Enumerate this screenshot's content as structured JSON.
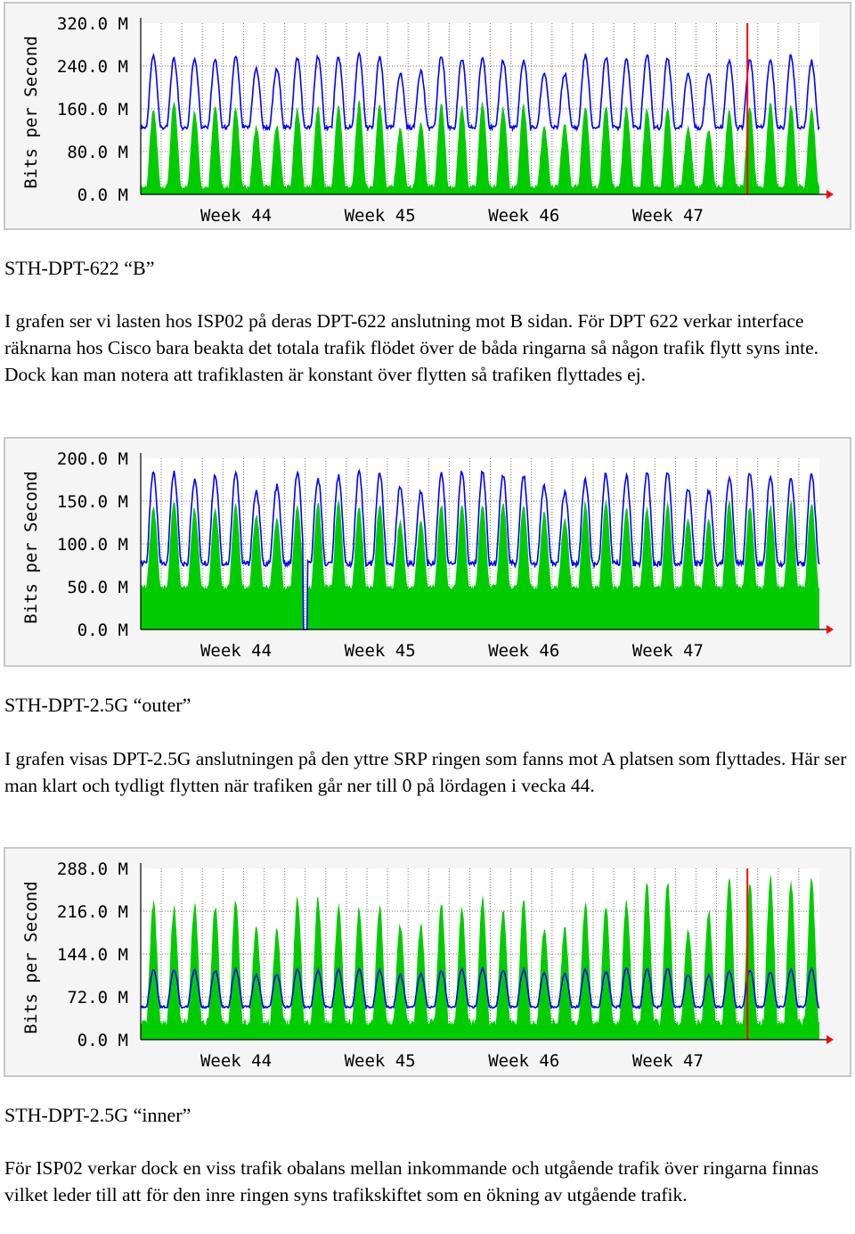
{
  "colors": {
    "in": "#00cc00",
    "out": "#0000ff",
    "marker": "#ff0000",
    "frame": "#c8c8c8"
  },
  "captions": {
    "c1": "STH-DPT-622 “B”",
    "c2": "STH-DPT-2.5G “outer”",
    "c3": "STH-DPT-2.5G “inner”"
  },
  "paragraphs": {
    "p1": "I grafen ser vi lasten hos ISP02 på deras DPT-622 anslutning mot B sidan. För DPT 622 verkar interface räknarna hos Cisco bara beakta det totala trafik flödet över de båda ringarna så någon trafik flytt syns inte. Dock kan man notera att trafiklasten är konstant över flytten så trafiken flyttades ej.",
    "p2": "I grafen visas DPT-2.5G anslutningen på den yttre SRP ringen som fanns mot A platsen som flyttades. Här ser man klart och tydligt flytten när trafiken går ner till 0 på lördagen i vecka 44.",
    "p3": "För ISP02 verkar dock en viss trafik obalans mellan inkommande och utgående trafik över ringarna finnas vilket leder till att för den inre ringen syns trafikskiftet som en ökning av utgående trafik."
  },
  "chart_data": [
    {
      "type": "area",
      "ylabel": "Bits per Second",
      "ylim": [
        0,
        320
      ],
      "yticks": [
        "320.0 M",
        "240.0 M",
        "160.0 M",
        "80.0 M",
        "0.0 M"
      ],
      "xticks": [
        "Week 44",
        "Week 45",
        "Week 46",
        "Week 47"
      ],
      "days": 33,
      "marker_day": 29.5,
      "series": [
        {
          "key": "in",
          "kind": "area",
          "peak": 168,
          "base": 15,
          "weekend_factor": 0.75
        },
        {
          "key": "out",
          "kind": "line",
          "peak": 258,
          "base": 125,
          "weekend_factor": 0.8
        }
      ]
    },
    {
      "type": "area",
      "ylabel": "Bits per Second",
      "ylim": [
        0,
        200
      ],
      "yticks": [
        "200.0 M",
        "150.0 M",
        "100.0 M",
        "50.0 M",
        "0.0 M"
      ],
      "xticks": [
        "Week 44",
        "Week 45",
        "Week 46",
        "Week 47"
      ],
      "days": 33,
      "drop_day": 8,
      "series": [
        {
          "key": "in",
          "kind": "area",
          "peak": 148,
          "base": 50,
          "weekend_factor": 0.85
        },
        {
          "key": "out",
          "kind": "line",
          "peak": 182,
          "base": 77,
          "weekend_factor": 0.85
        }
      ]
    },
    {
      "type": "area",
      "ylabel": "Bits per Second",
      "ylim": [
        0,
        288
      ],
      "yticks": [
        "288.0 M",
        "216.0 M",
        "144.0 M",
        "72.0 M",
        "0.0 M"
      ],
      "xticks": [
        "Week 44",
        "Week 45",
        "Week 46",
        "Week 47"
      ],
      "days": 33,
      "marker_day": 29.5,
      "series": [
        {
          "key": "in",
          "kind": "area",
          "peak": 232,
          "base": 30,
          "weekend_factor": 0.8,
          "late_peak": 270
        },
        {
          "key": "out",
          "kind": "line",
          "peak": 118,
          "base": 55,
          "weekend_factor": 0.9
        }
      ]
    }
  ]
}
